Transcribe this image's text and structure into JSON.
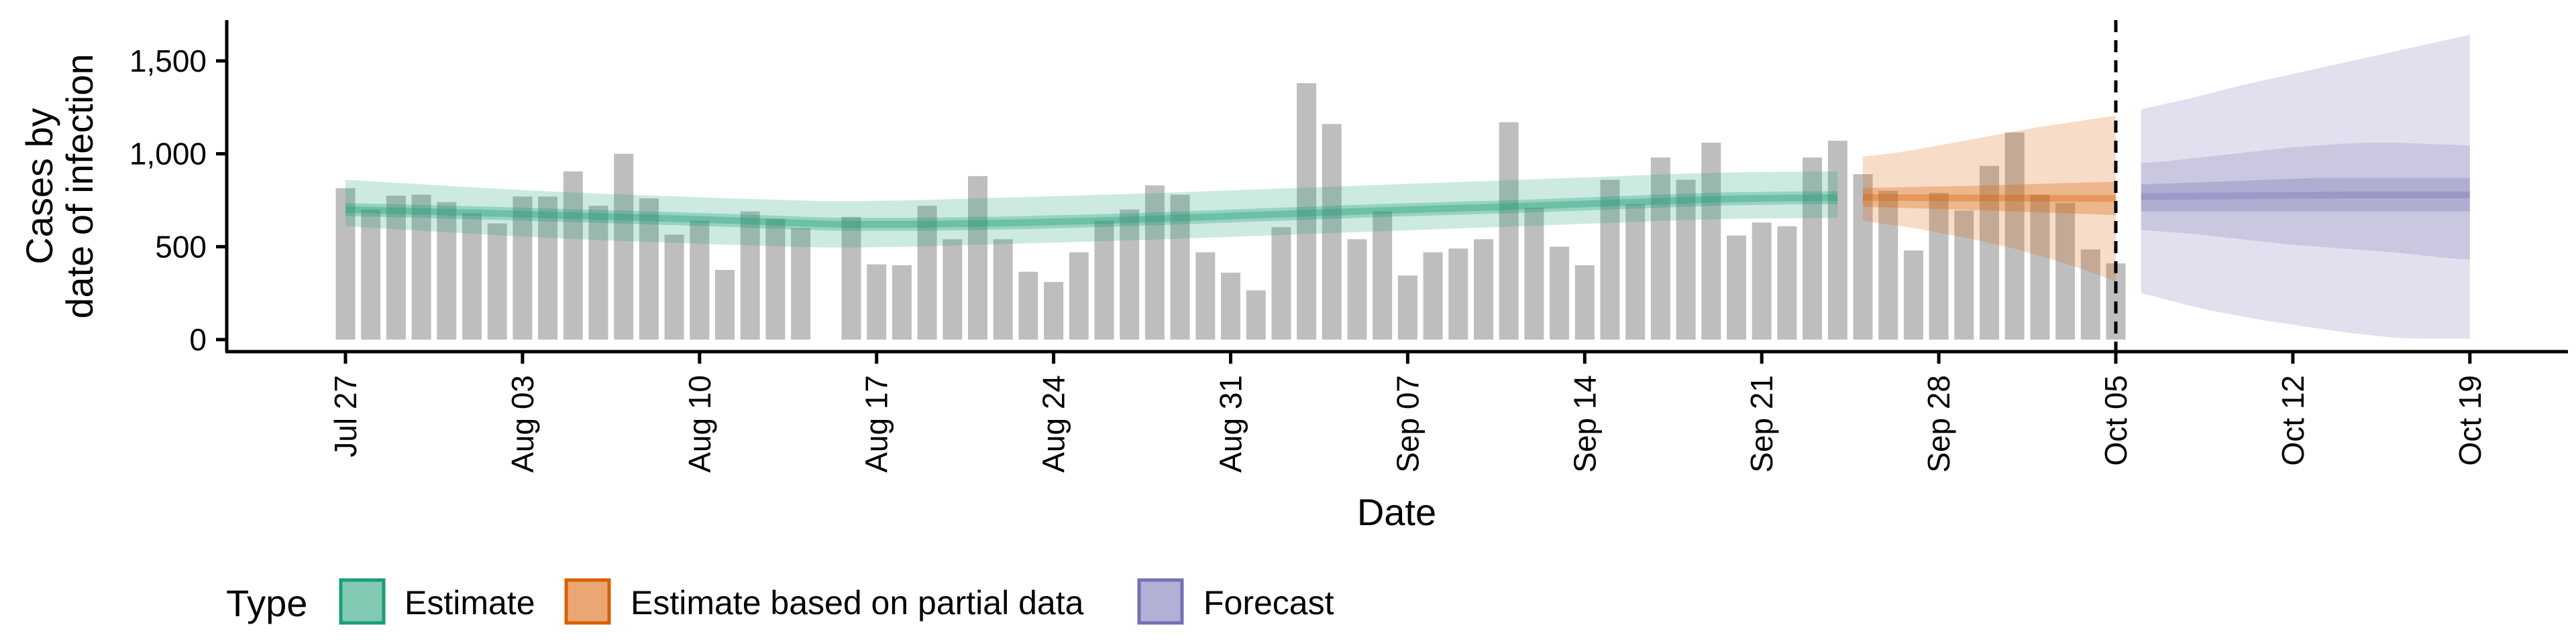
{
  "chart_data": {
    "type": "bar",
    "xlabel": "Date",
    "ylabel_lines": [
      "Cases by",
      "date of infection"
    ],
    "ylim": [
      0,
      1720
    ],
    "y_ticks": [
      0,
      500,
      1000,
      1500
    ],
    "y_tick_labels": [
      "0",
      "500",
      "1,000",
      "1,500"
    ],
    "x_ticks": [
      "2020-07-27",
      "2020-08-03",
      "2020-08-10",
      "2020-08-17",
      "2020-08-24",
      "2020-08-31",
      "2020-09-07",
      "2020-09-14",
      "2020-09-21",
      "2020-09-28",
      "2020-10-05",
      "2020-10-12",
      "2020-10-19"
    ],
    "x_tick_labels": [
      "Jul 27",
      "Aug 03",
      "Aug 10",
      "Aug 17",
      "Aug 24",
      "Aug 31",
      "Sep 07",
      "Sep 14",
      "Sep 21",
      "Sep 28",
      "Oct 05",
      "Oct 12",
      "Oct 19"
    ],
    "forecast_start_line": "2020-10-05",
    "bar_color": "#bebebe",
    "bar_dates": [
      "2020-07-27",
      "2020-10-05"
    ],
    "bar_values": [
      815,
      700,
      775,
      780,
      740,
      680,
      625,
      770,
      770,
      905,
      720,
      1000,
      760,
      565,
      640,
      375,
      690,
      650,
      600,
      null,
      660,
      405,
      400,
      720,
      540,
      880,
      540,
      365,
      310,
      470,
      640,
      700,
      830,
      780,
      470,
      360,
      265,
      605,
      1380,
      1160,
      540,
      690,
      345,
      470,
      490,
      540,
      1170,
      710,
      500,
      400,
      860,
      730,
      980,
      860,
      1060,
      560,
      630,
      610,
      980,
      1070,
      890,
      800,
      480,
      790,
      695,
      935,
      1115,
      780,
      735,
      485,
      410
    ],
    "series": [
      {
        "name": "Estimate",
        "color": "#1b9e77",
        "dates": [
          "2020-07-27",
          "2020-09-24"
        ],
        "median": [
          700,
          697,
          693,
          690,
          686,
          683,
          679,
          675,
          671,
          667,
          663,
          659,
          655,
          651,
          647,
          642,
          637,
          632,
          627,
          622,
          620,
          620,
          620,
          621,
          623,
          625,
          627,
          630,
          634,
          637,
          641,
          645,
          650,
          655,
          660,
          665,
          670,
          675,
          680,
          685,
          690,
          695,
          699,
          703,
          707,
          711,
          715,
          720,
          725,
          730,
          735,
          740,
          745,
          750,
          755,
          758,
          760,
          762,
          763,
          764
        ],
        "lower_50": [
          665,
          662,
          658,
          655,
          651,
          648,
          644,
          640,
          636,
          632,
          628,
          624,
          620,
          616,
          612,
          607,
          602,
          597,
          592,
          587,
          585,
          585,
          585,
          586,
          588,
          590,
          592,
          595,
          599,
          602,
          606,
          610,
          615,
          620,
          625,
          630,
          635,
          640,
          645,
          650,
          655,
          660,
          664,
          668,
          672,
          676,
          680,
          685,
          690,
          695,
          700,
          705,
          710,
          715,
          720,
          723,
          725,
          727,
          728,
          729
        ],
        "upper_50": [
          735,
          732,
          728,
          725,
          721,
          718,
          714,
          710,
          706,
          702,
          698,
          694,
          690,
          686,
          682,
          677,
          672,
          667,
          662,
          657,
          655,
          655,
          655,
          656,
          658,
          660,
          662,
          665,
          669,
          672,
          676,
          680,
          685,
          690,
          695,
          700,
          705,
          710,
          715,
          720,
          725,
          730,
          734,
          738,
          742,
          746,
          750,
          755,
          760,
          765,
          770,
          775,
          780,
          785,
          790,
          793,
          795,
          797,
          798,
          799
        ],
        "lower_90": [
          610,
          602,
          594,
          586,
          578,
          570,
          562,
          555,
          548,
          542,
          536,
          531,
          526,
          521,
          516,
          511,
          507,
          503,
          499,
          495,
          495,
          497,
          499,
          502,
          506,
          510,
          514,
          518,
          522,
          526,
          530,
          534,
          538,
          543,
          548,
          553,
          558,
          563,
          568,
          573,
          578,
          583,
          588,
          593,
          598,
          603,
          608,
          613,
          618,
          623,
          628,
          633,
          638,
          643,
          647,
          650,
          652,
          653,
          654,
          655
        ],
        "upper_90": [
          860,
          852,
          844,
          836,
          828,
          820,
          812,
          805,
          798,
          792,
          786,
          781,
          776,
          771,
          766,
          761,
          757,
          753,
          749,
          745,
          745,
          747,
          749,
          752,
          756,
          760,
          764,
          768,
          772,
          776,
          780,
          784,
          788,
          793,
          798,
          803,
          808,
          813,
          818,
          823,
          828,
          833,
          838,
          843,
          848,
          853,
          858,
          863,
          868,
          873,
          878,
          883,
          888,
          893,
          897,
          900,
          902,
          903,
          904,
          905
        ]
      },
      {
        "name": "Estimate based on partial data",
        "color": "#d95f02",
        "dates": [
          "2020-09-25",
          "2020-10-05"
        ],
        "median": [
          765,
          764,
          764,
          763,
          763,
          762,
          762,
          761,
          760,
          760,
          759
        ],
        "lower_50": [
          715,
          711,
          707,
          703,
          699,
          695,
          690,
          685,
          680,
          675,
          670
        ],
        "upper_50": [
          815,
          818,
          821,
          824,
          827,
          830,
          834,
          838,
          842,
          846,
          850
        ],
        "lower_90": [
          640,
          620,
          600,
          575,
          550,
          520,
          490,
          450,
          410,
          365,
          310
        ],
        "upper_90": [
          985,
          1000,
          1020,
          1045,
          1070,
          1095,
          1120,
          1145,
          1165,
          1185,
          1205
        ]
      },
      {
        "name": "Forecast",
        "color": "#7570b3",
        "dates": [
          "2020-10-06",
          "2020-10-19"
        ],
        "median": [
          770,
          771,
          772,
          773,
          774,
          775,
          776,
          777,
          778,
          778,
          778,
          778,
          778,
          778
        ],
        "lower_50": [
          690,
          690,
          690,
          690,
          690,
          690,
          690,
          690,
          690,
          690,
          690,
          690,
          690,
          690
        ],
        "upper_50": [
          835,
          840,
          845,
          850,
          855,
          860,
          865,
          870,
          870,
          870,
          870,
          870,
          870,
          870
        ],
        "lower_25": [
          590,
          580,
          570,
          555,
          540,
          525,
          510,
          500,
          490,
          480,
          470,
          455,
          440,
          430
        ],
        "upper_25": [
          950,
          960,
          975,
          990,
          1005,
          1020,
          1035,
          1045,
          1055,
          1060,
          1060,
          1055,
          1050,
          1045
        ],
        "lower_90": [
          250,
          215,
          180,
          150,
          125,
          100,
          80,
          60,
          40,
          25,
          10,
          5,
          5,
          5
        ],
        "upper_90": [
          1240,
          1270,
          1300,
          1335,
          1370,
          1400,
          1430,
          1460,
          1490,
          1520,
          1550,
          1580,
          1610,
          1640
        ]
      }
    ],
    "legend": {
      "title": "Type",
      "position": "bottom",
      "entries": [
        "Estimate",
        "Estimate based on partial data",
        "Forecast"
      ]
    },
    "grid": false
  }
}
